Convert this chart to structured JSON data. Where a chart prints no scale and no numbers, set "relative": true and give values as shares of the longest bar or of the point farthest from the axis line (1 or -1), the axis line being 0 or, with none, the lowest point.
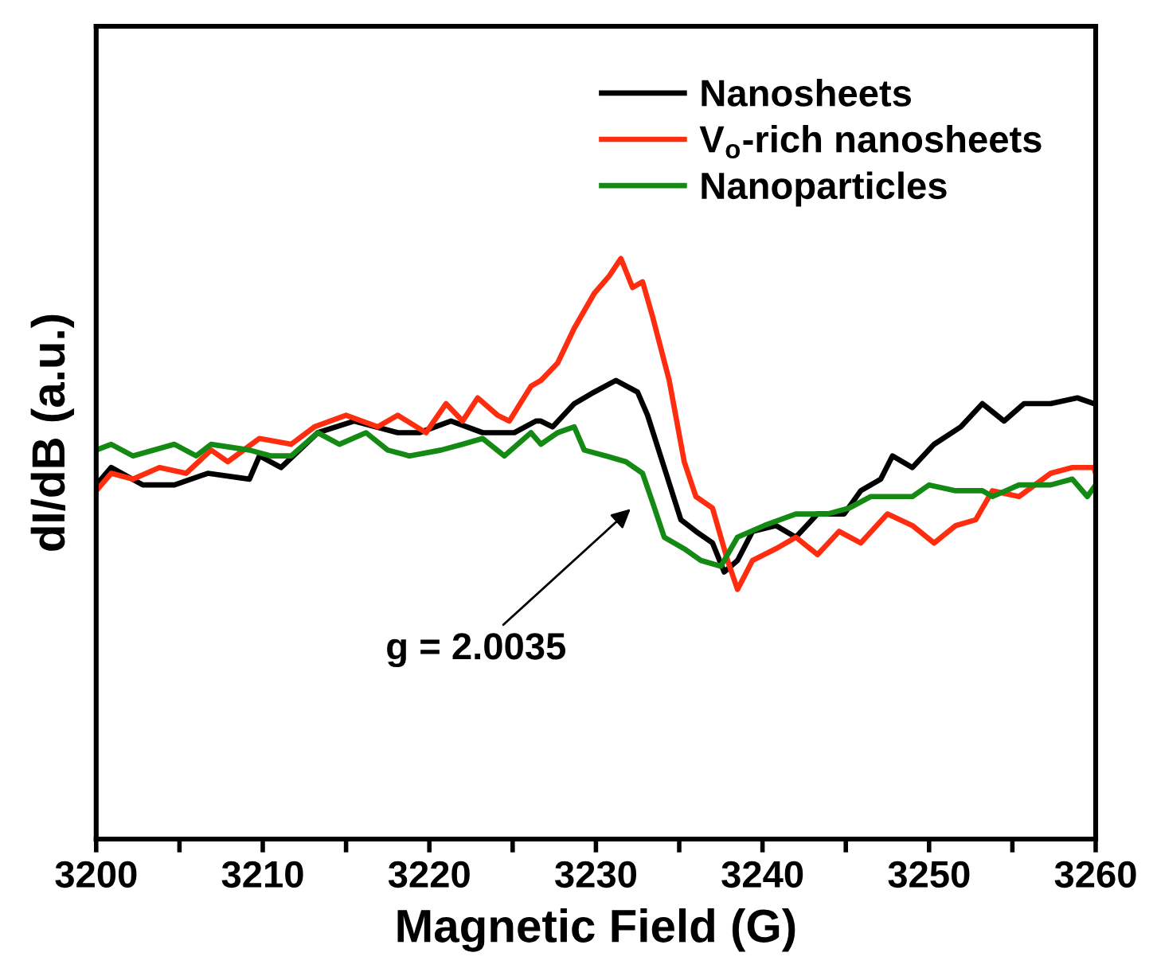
{
  "chart_data": {
    "type": "line",
    "relative": true,
    "xlabel": "Magnetic Field (G)",
    "ylabel": "dI/dB (a.u.)",
    "xlim": [
      3200,
      3260
    ],
    "xticks": [
      3200,
      {
        "value": 3205,
        "label": null
      },
      3210,
      {
        "value": 3215,
        "label": null
      },
      3220,
      {
        "value": 3225,
        "label": null
      },
      3230,
      {
        "value": 3235,
        "label": null
      },
      3240,
      {
        "value": 3245,
        "label": null
      },
      3250,
      {
        "value": 3255,
        "label": null
      },
      3260
    ],
    "tick_labels": "x",
    "legend": "top right",
    "grid": false,
    "line_style": "solid",
    "annotations": [
      "g = 2.0035"
    ],
    "series": [
      {
        "name": "Nanosheets",
        "color": "#000000",
        "x": [
          3200.0,
          3200.9,
          3202.8,
          3204.7,
          3206.7,
          3209.2,
          3209.8,
          3211.1,
          3213.3,
          3215.5,
          3218.1,
          3219.4,
          3221.3,
          3223.2,
          3225.1,
          3226.4,
          3226.7,
          3227.4,
          3228.7,
          3229.9,
          3231.2,
          3232.5,
          3233.1,
          3234.1,
          3235.1,
          3236.0,
          3237.0,
          3237.7,
          3238.5,
          3239.4,
          3240.8,
          3242.0,
          3243.3,
          3244.9,
          3245.9,
          3247.1,
          3247.8,
          3249.0,
          3250.3,
          3251.9,
          3253.2,
          3254.5,
          3255.7,
          3257.3,
          3258.9,
          3259.9
        ],
        "values": [
          0.61,
          0.64,
          0.61,
          0.61,
          0.63,
          0.62,
          0.66,
          0.64,
          0.7,
          0.72,
          0.7,
          0.7,
          0.72,
          0.7,
          0.7,
          0.72,
          0.72,
          0.71,
          0.75,
          0.77,
          0.79,
          0.77,
          0.73,
          0.64,
          0.55,
          0.53,
          0.51,
          0.46,
          0.48,
          0.53,
          0.54,
          0.52,
          0.56,
          0.56,
          0.6,
          0.62,
          0.66,
          0.64,
          0.68,
          0.71,
          0.75,
          0.72,
          0.75,
          0.75,
          0.76,
          0.75
        ]
      },
      {
        "name": "V$_{o}$-rich nanosheets",
        "color": "#ff2d0f",
        "x": [
          3200.0,
          3200.9,
          3202.2,
          3203.8,
          3205.4,
          3206.9,
          3207.9,
          3209.8,
          3211.7,
          3213.1,
          3215.0,
          3216.9,
          3218.1,
          3219.8,
          3221.0,
          3222.0,
          3222.9,
          3224.1,
          3224.8,
          3226.1,
          3226.7,
          3227.7,
          3228.7,
          3229.9,
          3230.8,
          3231.5,
          3232.2,
          3232.8,
          3233.4,
          3234.4,
          3235.3,
          3236.0,
          3237.0,
          3237.9,
          3238.5,
          3239.4,
          3240.8,
          3242.0,
          3243.3,
          3244.6,
          3245.9,
          3247.5,
          3249.0,
          3250.3,
          3251.6,
          3252.8,
          3253.8,
          3255.4,
          3257.3,
          3258.6,
          3259.9,
          3260.0
        ],
        "values": [
          0.6,
          0.63,
          0.62,
          0.64,
          0.63,
          0.67,
          0.65,
          0.69,
          0.68,
          0.71,
          0.73,
          0.71,
          0.73,
          0.7,
          0.75,
          0.72,
          0.76,
          0.73,
          0.72,
          0.78,
          0.79,
          0.82,
          0.88,
          0.94,
          0.97,
          1.0,
          0.95,
          0.96,
          0.9,
          0.79,
          0.65,
          0.59,
          0.57,
          0.48,
          0.43,
          0.48,
          0.5,
          0.52,
          0.49,
          0.53,
          0.51,
          0.56,
          0.54,
          0.51,
          0.54,
          0.55,
          0.6,
          0.59,
          0.63,
          0.64,
          0.64,
          0.63
        ]
      },
      {
        "name": "Nanoparticles",
        "color": "#148a14",
        "x": [
          3200.0,
          3200.9,
          3202.2,
          3204.7,
          3206.0,
          3206.9,
          3209.2,
          3210.5,
          3211.7,
          3213.3,
          3214.6,
          3216.2,
          3217.5,
          3218.8,
          3220.7,
          3222.0,
          3223.2,
          3224.5,
          3226.1,
          3226.7,
          3227.7,
          3228.7,
          3229.3,
          3230.6,
          3231.8,
          3232.8,
          3233.4,
          3234.1,
          3235.3,
          3236.3,
          3237.5,
          3238.5,
          3240.1,
          3242.0,
          3243.9,
          3245.2,
          3246.5,
          3247.8,
          3249.0,
          3250.0,
          3251.6,
          3253.2,
          3253.8,
          3255.4,
          3257.3,
          3258.6,
          3259.5,
          3260.0
        ],
        "values": [
          0.67,
          0.68,
          0.66,
          0.68,
          0.66,
          0.68,
          0.67,
          0.66,
          0.66,
          0.7,
          0.68,
          0.7,
          0.67,
          0.66,
          0.67,
          0.68,
          0.69,
          0.66,
          0.7,
          0.68,
          0.7,
          0.71,
          0.67,
          0.66,
          0.65,
          0.63,
          0.58,
          0.52,
          0.5,
          0.48,
          0.47,
          0.52,
          0.54,
          0.56,
          0.56,
          0.57,
          0.59,
          0.59,
          0.59,
          0.61,
          0.6,
          0.6,
          0.59,
          0.61,
          0.61,
          0.62,
          0.59,
          0.61
        ]
      }
    ]
  }
}
